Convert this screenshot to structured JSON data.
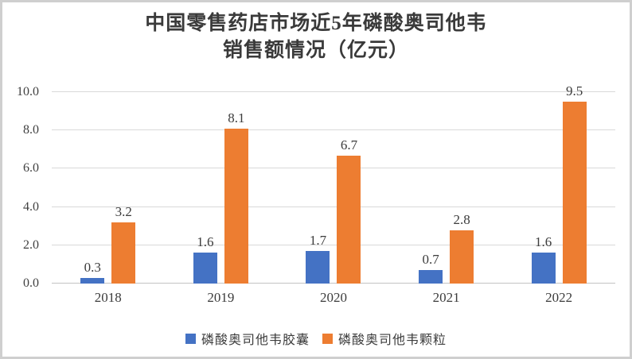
{
  "window": {
    "background_color": "#ffffff",
    "border_color": "#cfcfcf"
  },
  "chart_data": {
    "type": "bar",
    "title_line1": "中国零售药店市场近5年磷酸奥司他韦",
    "title_line2": "销售额情况（亿元）",
    "categories": [
      "2018",
      "2019",
      "2020",
      "2021",
      "2022"
    ],
    "series": [
      {
        "name": "磷酸奥司他韦胶囊",
        "color": "#4472C4",
        "values": [
          0.3,
          1.6,
          1.7,
          0.7,
          1.6
        ]
      },
      {
        "name": "磷酸奥司他韦颗粒",
        "color": "#ED7D31",
        "values": [
          3.2,
          8.1,
          6.7,
          2.8,
          9.5
        ]
      }
    ],
    "ylim": [
      0,
      10
    ],
    "ytick_step": 2,
    "ytick_labels": [
      "0.0",
      "2.0",
      "4.0",
      "6.0",
      "8.0",
      "10.0"
    ],
    "grid": true,
    "gridline_color": "#d9d9d9",
    "data_labels": true,
    "legend_position": "bottom",
    "xlabel": "",
    "ylabel": ""
  }
}
